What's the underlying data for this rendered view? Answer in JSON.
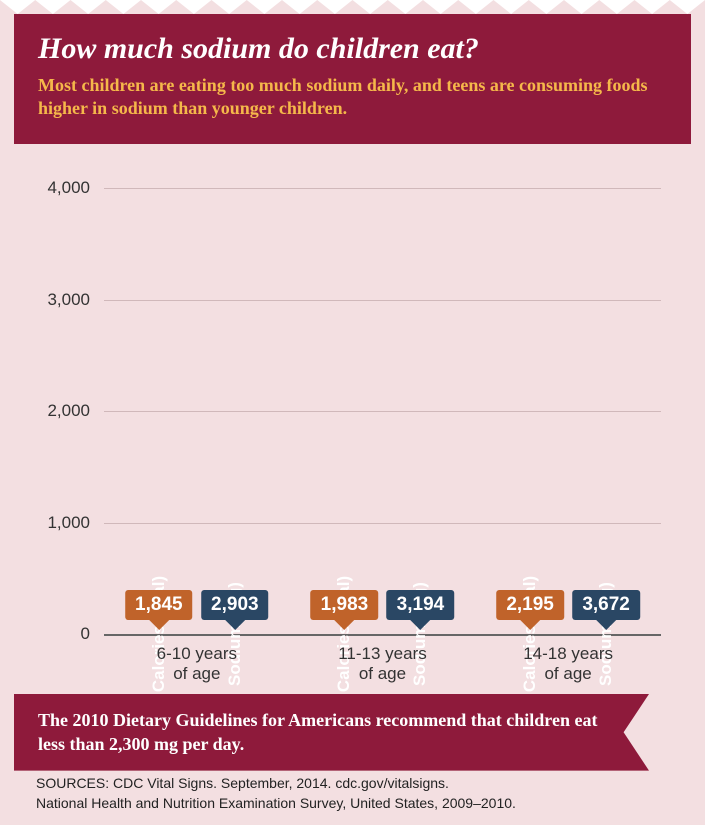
{
  "colors": {
    "header_bg": "#8e1a3b",
    "subtitle_color": "#f5b84a",
    "chart_bg": "#f3dfe1",
    "calories_bar": "#e79735",
    "calories_tag": "#c0632a",
    "sodium_bar": "#6fa6cf",
    "sodium_tag": "#2a4764",
    "ribbon_bg": "#8e1a3b"
  },
  "header": {
    "title": "How much sodium do children eat?",
    "subtitle": "Most children are eating too much sodium daily, and teens are consuming foods higher in sodium than younger children."
  },
  "chart": {
    "type": "bar",
    "y": {
      "min": 0,
      "max": 4000,
      "ticks": [
        0,
        1000,
        2000,
        3000,
        4000
      ],
      "tick_labels": [
        "0",
        "1,000",
        "2,000",
        "3,000",
        "4,000"
      ]
    },
    "series_labels": {
      "calories": "Calories (kcal)",
      "sodium": "Sodium (mg)"
    },
    "groups": [
      {
        "age_l1": "6-10 years",
        "age_l2": "of age",
        "calories": 1845,
        "calories_label": "1,845",
        "sodium": 2903,
        "sodium_label": "2,903"
      },
      {
        "age_l1": "11-13 years",
        "age_l2": "of age",
        "calories": 1983,
        "calories_label": "1,983",
        "sodium": 3194,
        "sodium_label": "3,194"
      },
      {
        "age_l1": "14-18 years",
        "age_l2": "of age",
        "calories": 2195,
        "calories_label": "2,195",
        "sodium": 3672,
        "sodium_label": "3,672"
      }
    ]
  },
  "recommendation": "The 2010 Dietary Guidelines for Americans recommend that children eat less than 2,300 mg per day.",
  "sources": {
    "line1": "SOURCES: CDC Vital Signs. September, 2014. cdc.gov/vitalsigns.",
    "line2": "National Health and Nutrition Examination Survey, United States, 2009–2010."
  }
}
